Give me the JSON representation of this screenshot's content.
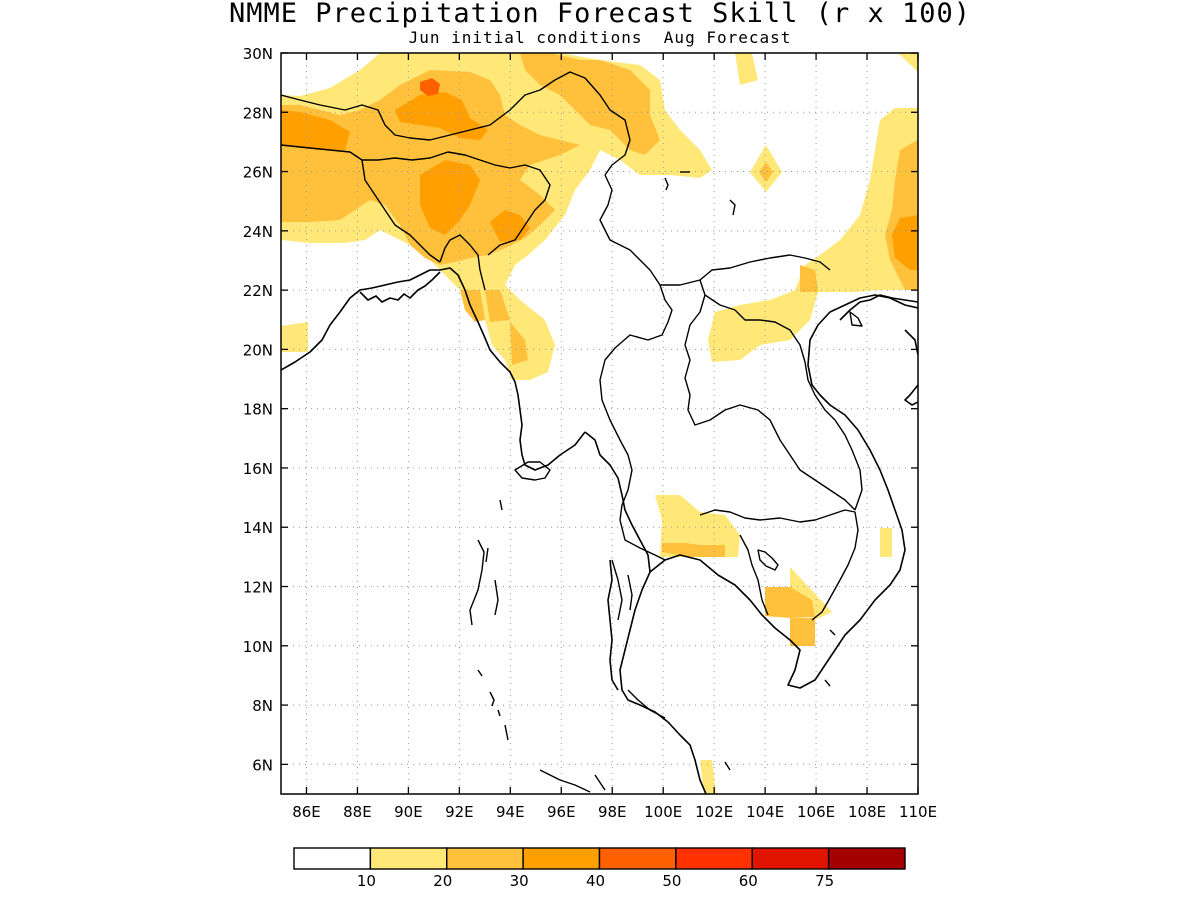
{
  "title": "NMME Precipitation Forecast Skill (r x 100)",
  "subtitle": "Jun initial conditions  Aug Forecast",
  "map": {
    "lon_range": [
      85,
      110
    ],
    "lat_range": [
      5,
      30
    ],
    "lon_ticks": [
      86,
      88,
      90,
      92,
      94,
      96,
      98,
      100,
      102,
      104,
      106,
      108,
      110
    ],
    "lat_ticks": [
      6,
      8,
      10,
      12,
      14,
      16,
      18,
      20,
      22,
      24,
      26,
      28,
      30
    ],
    "lon_tick_labels": [
      "86E",
      "88E",
      "90E",
      "92E",
      "94E",
      "96E",
      "98E",
      "100E",
      "102E",
      "104E",
      "106E",
      "108E",
      "110E"
    ],
    "lat_tick_labels": [
      "6N",
      "8N",
      "10N",
      "12N",
      "14N",
      "16N",
      "18N",
      "20N",
      "22N",
      "24N",
      "26N",
      "28N",
      "30N"
    ],
    "grid": "dotted"
  },
  "colorbar": {
    "colors": [
      "#ffffff",
      "#ffe878",
      "#ffc03c",
      "#ffa000",
      "#ff6000",
      "#ff3200",
      "#e11400",
      "#a50000"
    ],
    "labels": [
      "10",
      "20",
      "30",
      "40",
      "50",
      "60",
      "75"
    ],
    "placement": "bottom"
  }
}
